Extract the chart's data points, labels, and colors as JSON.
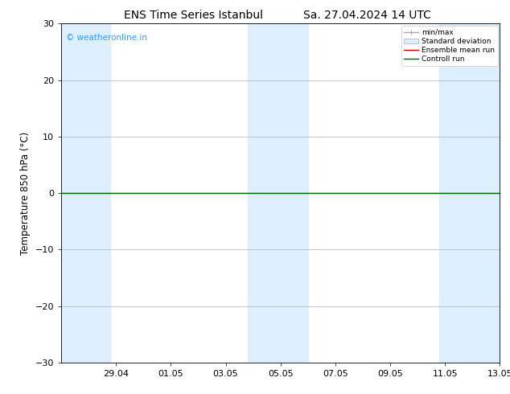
{
  "title_left": "ENS Time Series Istanbul",
  "title_right": "Sa. 27.04.2024 14 UTC",
  "ylabel": "Temperature 850 hPa (°C)",
  "watermark": "© weatheronline.in",
  "watermark_color": "#3399ff",
  "ylim": [
    -30,
    30
  ],
  "yticks": [
    -30,
    -20,
    -10,
    0,
    10,
    20,
    30
  ],
  "x_labels": [
    "29.04",
    "01.05",
    "03.05",
    "05.05",
    "07.05",
    "09.05",
    "11.05",
    "13.05"
  ],
  "shaded_color": "#ddeeff",
  "ensemble_mean_color": "#cc0000",
  "control_run_color": "#006600",
  "background_color": "#ffffff",
  "plot_bg_color": "#ffffff",
  "legend_labels": [
    "min/max",
    "Standard deviation",
    "Ensemble mean run",
    "Controll run"
  ],
  "grid_color": "#b0b0b0",
  "title_fontsize": 10,
  "axis_label_fontsize": 8.5,
  "tick_fontsize": 8
}
